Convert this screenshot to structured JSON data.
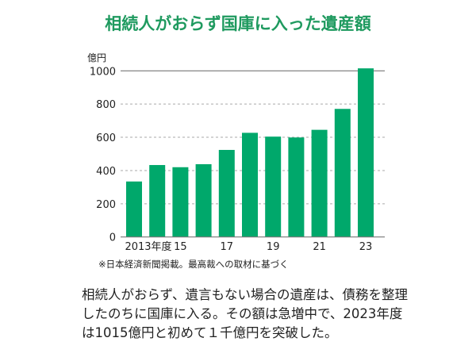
{
  "title": "相続人がおらず国庫に入った遺産額",
  "chart_data": {
    "type": "bar",
    "ylabel": "億円",
    "ylim": [
      0,
      1000
    ],
    "yticks": [
      0,
      200,
      400,
      600,
      800,
      1000
    ],
    "grid": true,
    "categories": [
      "2013",
      "2014",
      "2015",
      "2016",
      "2017",
      "2018",
      "2019",
      "2020",
      "2021",
      "2022",
      "2023"
    ],
    "xtick_labels": [
      "2013年度",
      "",
      "15",
      "",
      "17",
      "",
      "19",
      "",
      "21",
      "",
      "23"
    ],
    "values": [
      334,
      433,
      420,
      438,
      524,
      627,
      604,
      599,
      645,
      771,
      1015
    ],
    "color": "#00a86b",
    "note": "※日本経済新聞掲載。最高裁への取材に基づく"
  },
  "body_text": "相続人がおらず、遺言もない場合の遺産は、債務を整理したのちに国庫に入る。その額は急増中で、2023年度は1015億円と初めて１千億円を突破した。"
}
